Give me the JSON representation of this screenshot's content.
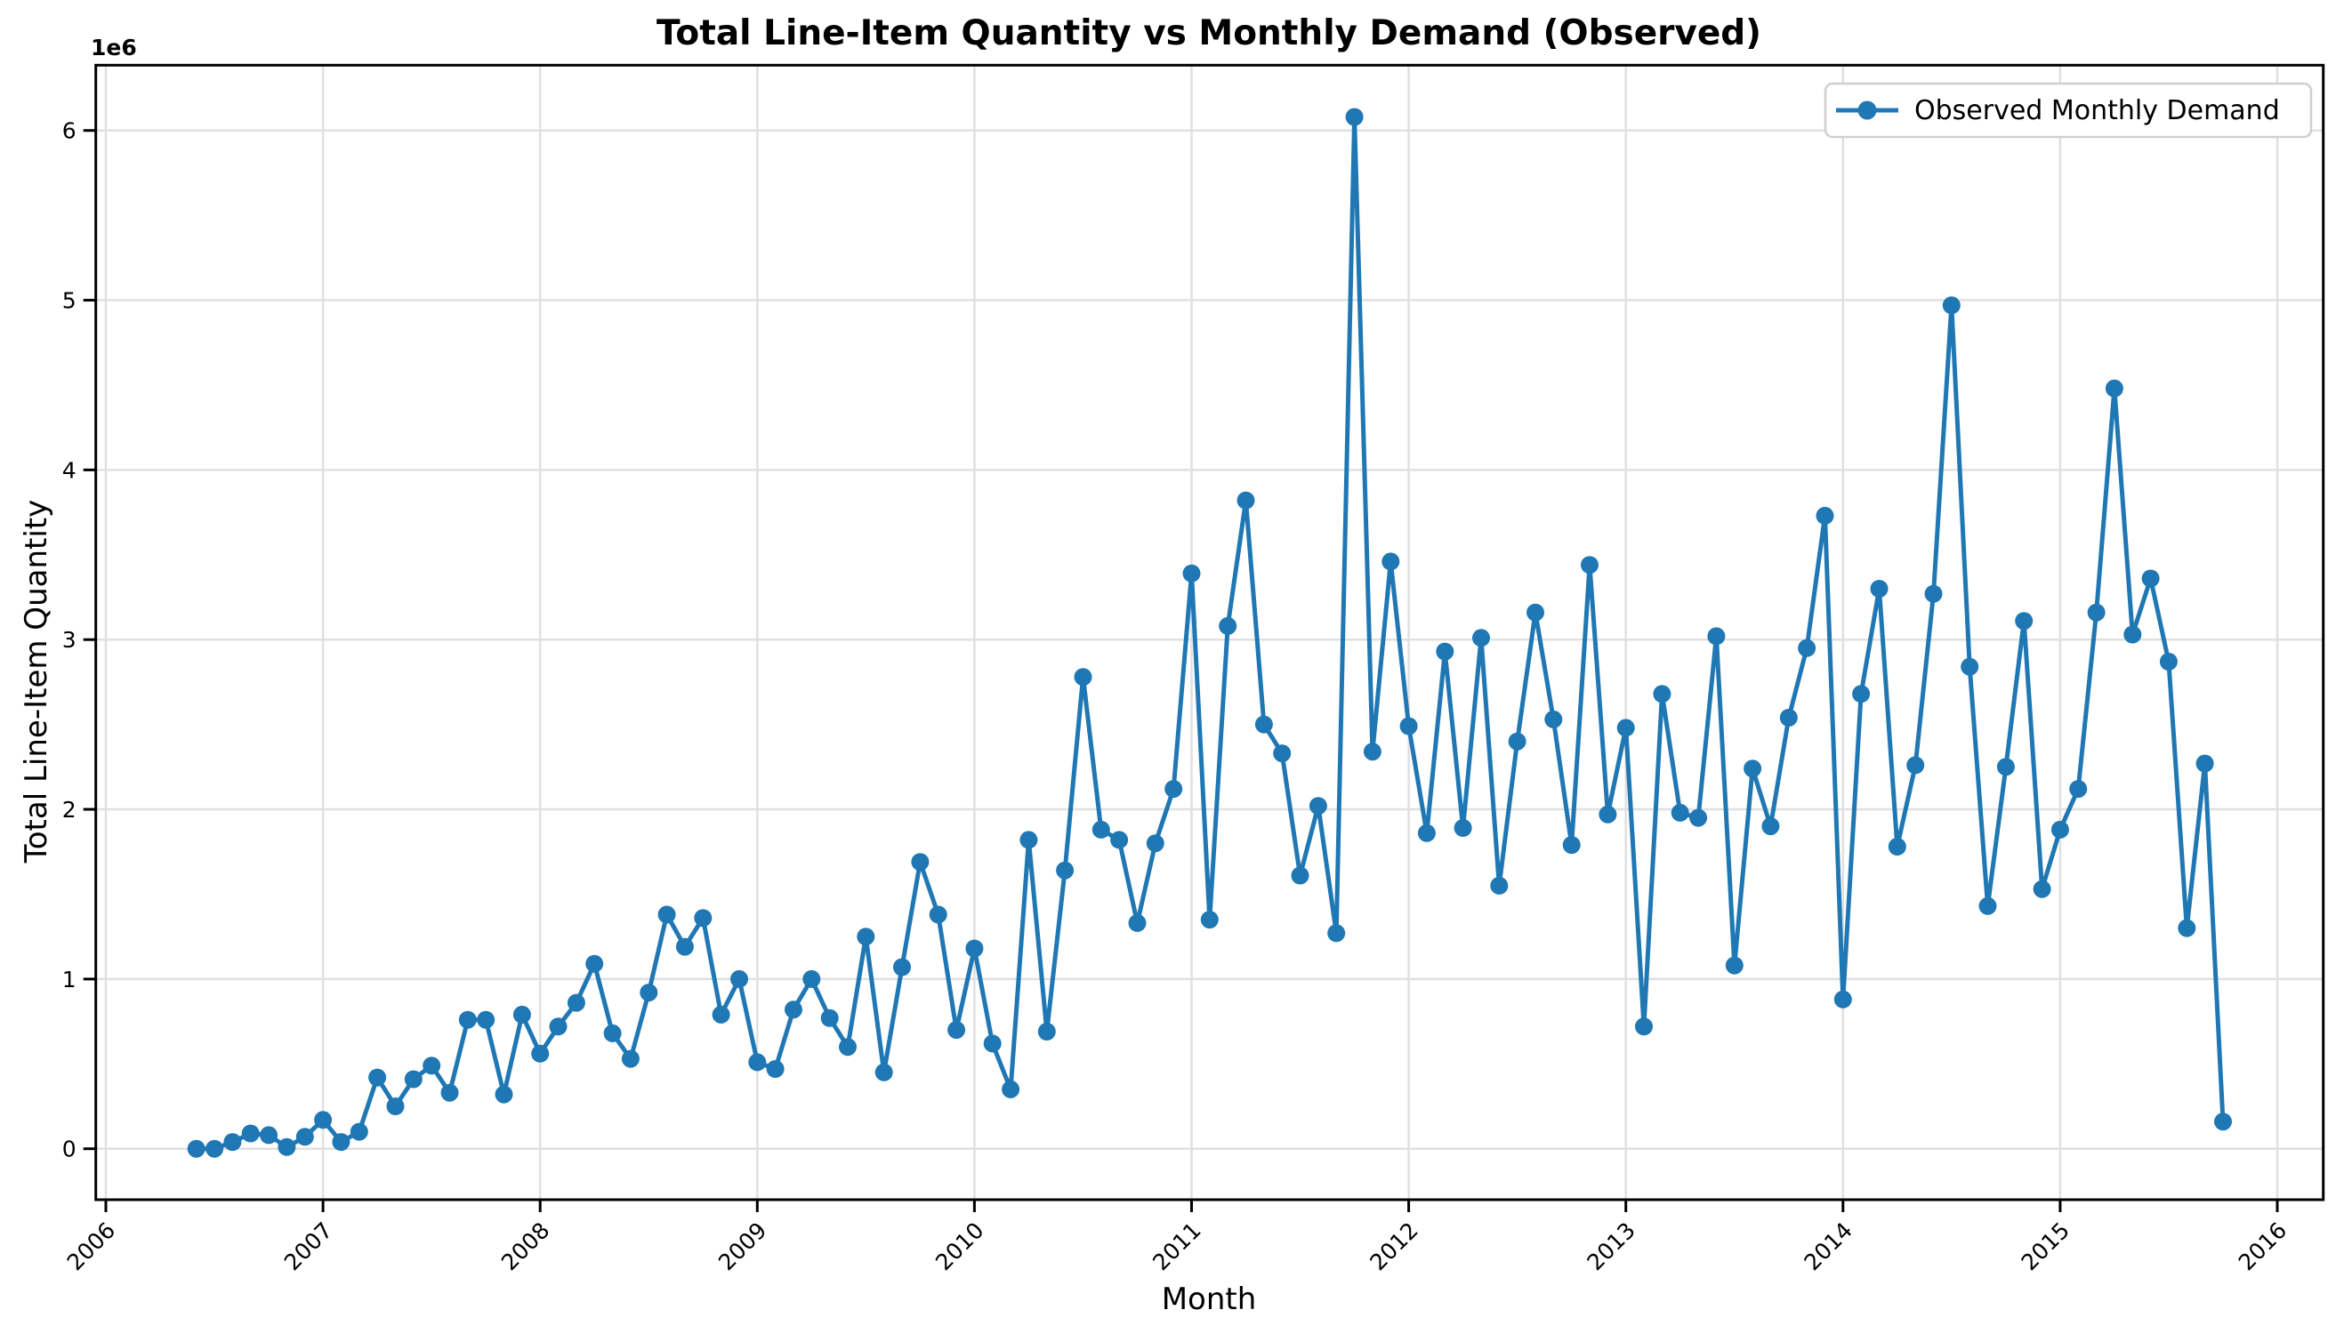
{
  "chart_data": {
    "type": "line",
    "title": "Total Line-Item Quantity vs Monthly Demand (Observed)",
    "xlabel": "Month",
    "ylabel": "Total Line-Item Quantity",
    "y_offset_label": "1e6",
    "values_unit_multiplier": "1e6",
    "grid": true,
    "x_tick_rotation": 45,
    "x_ticks": [
      2006,
      2007,
      2008,
      2009,
      2010,
      2011,
      2012,
      2013,
      2014,
      2015,
      2016
    ],
    "y_ticks": [
      0,
      1,
      2,
      3,
      4,
      5,
      6
    ],
    "xlim_years": [
      2005.95,
      2016.21
    ],
    "ylim_e6": [
      -0.3,
      6.39
    ],
    "legend": {
      "position": "upper right",
      "entries": [
        {
          "label": "Observed Monthly Demand",
          "color": "#1f77b4",
          "marker": "circle"
        }
      ]
    },
    "colors": {
      "series_line": "#1f77b4",
      "grid_line": "#e0e0e0",
      "spine": "#000000",
      "legend_border": "#cfcfcf",
      "background": "#ffffff"
    },
    "series": [
      {
        "name": "Observed Monthly Demand",
        "x": [
          "2006-06",
          "2006-07",
          "2006-08",
          "2006-09",
          "2006-10",
          "2006-11",
          "2006-12",
          "2007-01",
          "2007-02",
          "2007-03",
          "2007-04",
          "2007-05",
          "2007-06",
          "2007-07",
          "2007-08",
          "2007-09",
          "2007-10",
          "2007-11",
          "2007-12",
          "2008-01",
          "2008-02",
          "2008-03",
          "2008-04",
          "2008-05",
          "2008-06",
          "2008-07",
          "2008-08",
          "2008-09",
          "2008-10",
          "2008-11",
          "2008-12",
          "2009-01",
          "2009-02",
          "2009-03",
          "2009-04",
          "2009-05",
          "2009-06",
          "2009-07",
          "2009-08",
          "2009-09",
          "2009-10",
          "2009-11",
          "2009-12",
          "2010-01",
          "2010-02",
          "2010-03",
          "2010-04",
          "2010-05",
          "2010-06",
          "2010-07",
          "2010-08",
          "2010-09",
          "2010-10",
          "2010-11",
          "2010-12",
          "2011-01",
          "2011-02",
          "2011-03",
          "2011-04",
          "2011-05",
          "2011-06",
          "2011-07",
          "2011-08",
          "2011-09",
          "2011-10",
          "2011-11",
          "2011-12",
          "2012-01",
          "2012-02",
          "2012-03",
          "2012-04",
          "2012-05",
          "2012-06",
          "2012-07",
          "2012-08",
          "2012-09",
          "2012-10",
          "2012-11",
          "2012-12",
          "2013-01",
          "2013-02",
          "2013-03",
          "2013-04",
          "2013-05",
          "2013-06",
          "2013-07",
          "2013-08",
          "2013-09",
          "2013-10",
          "2013-11",
          "2013-12",
          "2014-01",
          "2014-02",
          "2014-03",
          "2014-04",
          "2014-05",
          "2014-06",
          "2014-07",
          "2014-08",
          "2014-09",
          "2014-10",
          "2014-11",
          "2014-12",
          "2015-01",
          "2015-02",
          "2015-03",
          "2015-04",
          "2015-05",
          "2015-06",
          "2015-07",
          "2015-08",
          "2015-09",
          "2015-10"
        ],
        "y_e6": [
          0.0,
          0.0,
          0.04,
          0.09,
          0.08,
          0.01,
          0.07,
          0.17,
          0.04,
          0.1,
          0.42,
          0.25,
          0.41,
          0.49,
          0.33,
          0.76,
          0.76,
          0.32,
          0.79,
          0.56,
          0.72,
          0.86,
          1.09,
          0.68,
          0.53,
          0.92,
          1.38,
          1.19,
          1.36,
          0.79,
          1.0,
          0.51,
          0.47,
          0.82,
          1.0,
          0.77,
          0.6,
          1.25,
          0.45,
          1.07,
          1.69,
          1.38,
          0.7,
          1.18,
          0.62,
          0.35,
          1.82,
          0.69,
          1.64,
          2.78,
          1.88,
          1.82,
          1.33,
          1.8,
          2.12,
          3.39,
          1.35,
          3.08,
          3.82,
          2.5,
          2.33,
          1.61,
          2.02,
          1.27,
          6.08,
          2.34,
          3.46,
          2.49,
          1.86,
          2.93,
          1.89,
          3.01,
          1.55,
          2.4,
          3.16,
          2.53,
          1.79,
          3.44,
          1.97,
          2.48,
          0.72,
          2.68,
          1.98,
          1.95,
          3.02,
          1.08,
          2.24,
          1.9,
          2.54,
          2.95,
          3.73,
          0.88,
          2.68,
          3.3,
          1.78,
          2.26,
          3.27,
          4.97,
          2.84,
          1.43,
          2.25,
          3.11,
          1.53,
          1.88,
          2.12,
          3.16,
          4.48,
          3.03,
          3.36,
          2.87,
          1.3,
          2.27,
          0.16
        ]
      }
    ]
  }
}
